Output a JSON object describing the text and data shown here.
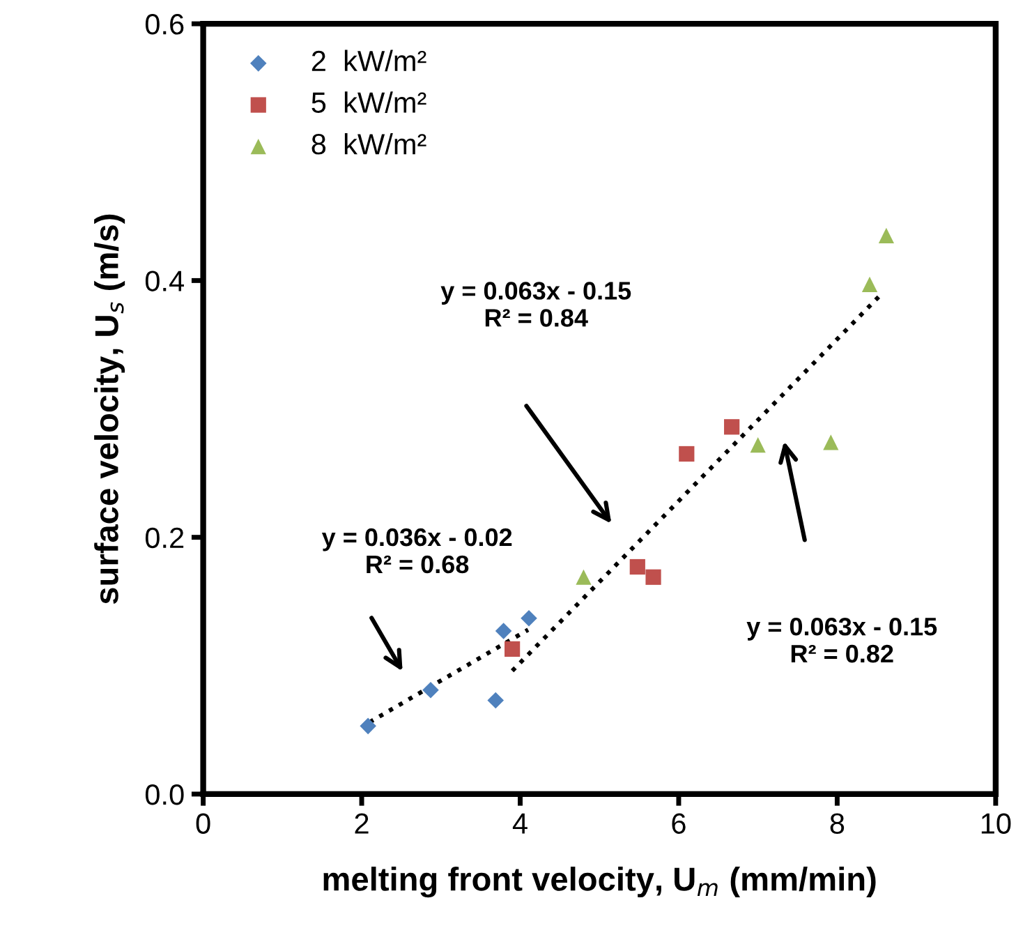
{
  "chart_data": {
    "type": "scatter",
    "xlabel": "melting front velocity, U$_{m}$ (mm/min)",
    "ylabel": "surface velocity, U$_{s}$ (m/s)",
    "xlim": [
      0,
      10
    ],
    "ylim": [
      0,
      0.6
    ],
    "xticks": [
      0,
      2,
      4,
      6,
      8,
      10
    ],
    "yticks": [
      {
        "value": 0,
        "label": "0.0"
      },
      {
        "value": 0.2,
        "label": "0.2"
      },
      {
        "value": 0.4,
        "label": "0.4"
      },
      {
        "value": 0.6,
        "label": "0.6"
      }
    ],
    "grid": false,
    "legend": "top left",
    "series": [
      {
        "name": "2  kW/m²",
        "color": "#4f81bd",
        "marker": "diamond",
        "x": [
          2.08,
          2.87,
          3.69,
          3.79,
          4.11
        ],
        "values": [
          0.053,
          0.081,
          0.073,
          0.127,
          0.137
        ]
      },
      {
        "name": "5  kW/m²",
        "color": "#c0504d",
        "marker": "square",
        "x": [
          3.9,
          5.48,
          5.68,
          6.1,
          6.67
        ],
        "values": [
          0.113,
          0.177,
          0.169,
          0.265,
          0.286
        ]
      },
      {
        "name": "8  kW/m²",
        "color": "#9bbb59",
        "marker": "triangle",
        "x": [
          4.8,
          7.0,
          7.92,
          8.41,
          8.62
        ],
        "values": [
          0.169,
          0.272,
          0.274,
          0.397,
          0.435
        ]
      },
      {
        "type": "line",
        "color": "#000000",
        "line_style": "dotted",
        "marker": "none",
        "x": [
          2.1,
          4.1
        ],
        "values": [
          0.056,
          0.128
        ]
      },
      {
        "type": "line",
        "color": "#000000",
        "line_style": "dotted",
        "marker": "none",
        "x": [
          3.9,
          8.55
        ],
        "values": [
          0.096,
          0.389
        ]
      }
    ],
    "annotations": [
      "y = 0.036x - 0.02\nR² = 0.68",
      "y = 0.063x - 0.15\nR² = 0.84",
      "y = 0.063x - 0.15\nR² = 0.82"
    ]
  }
}
